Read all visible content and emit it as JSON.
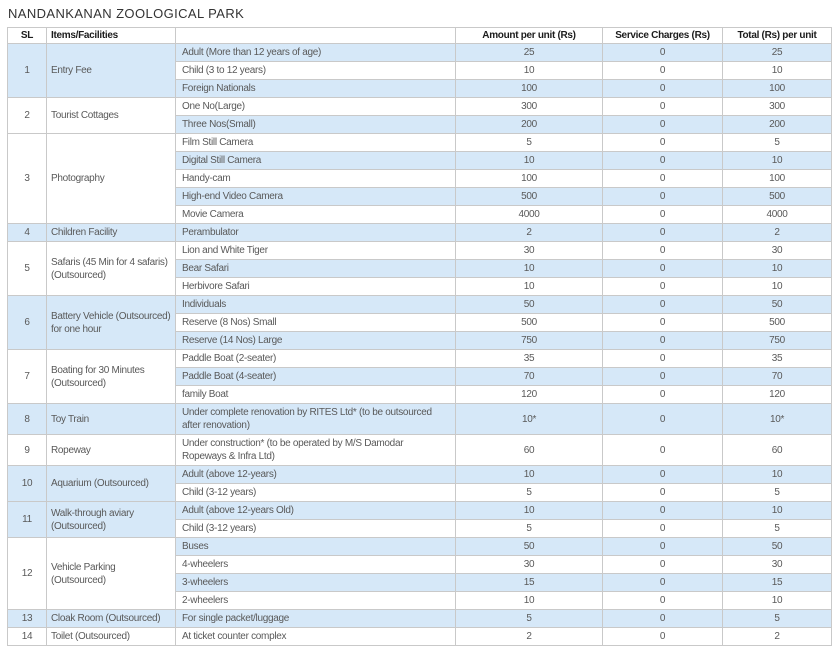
{
  "title": "NANDANKANAN ZOOLOGICAL PARK",
  "colors": {
    "row_highlight": "#d6e8f8",
    "border": "#c9c9c9",
    "outer_border": "#919191",
    "body_text": "#595959",
    "header_text": "#1c1c1c"
  },
  "table": {
    "headers": [
      "SL",
      "Items/Facilities",
      "",
      "Amount per unit (Rs)",
      "Service Charges (Rs)",
      "Total (Rs) per unit"
    ],
    "groups": [
      {
        "sl": "1",
        "facility": "Entry Fee",
        "shaded": true,
        "rows": [
          {
            "item": "Adult (More than 12 years of age)",
            "amount": "25",
            "service": "0",
            "total": "25"
          },
          {
            "item": "Child (3 to 12 years)",
            "amount": "10",
            "service": "0",
            "total": "10"
          },
          {
            "item": "Foreign Nationals",
            "amount": "100",
            "service": "0",
            "total": "100"
          }
        ]
      },
      {
        "sl": "2",
        "facility": "Tourist Cottages",
        "shaded": false,
        "rows": [
          {
            "item": "One No(Large)",
            "amount": "300",
            "service": "0",
            "total": "300"
          },
          {
            "item": "Three Nos(Small)",
            "amount": "200",
            "service": "0",
            "total": "200"
          }
        ]
      },
      {
        "sl": "3",
        "facility": "Photography",
        "shaded": false,
        "rows": [
          {
            "item": "Film Still Camera",
            "amount": "5",
            "service": "0",
            "total": "5"
          },
          {
            "item": "Digital Still Camera",
            "amount": "10",
            "service": "0",
            "total": "10"
          },
          {
            "item": "Handy-cam",
            "amount": "100",
            "service": "0",
            "total": "100"
          },
          {
            "item": "High-end Video Camera",
            "amount": "500",
            "service": "0",
            "total": "500"
          },
          {
            "item": "Movie Camera",
            "amount": "4000",
            "service": "0",
            "total": "4000"
          }
        ]
      },
      {
        "sl": "4",
        "facility": "Children Facility",
        "shaded": true,
        "rows": [
          {
            "item": "Perambulator",
            "amount": "2",
            "service": "0",
            "total": "2"
          }
        ]
      },
      {
        "sl": "5",
        "facility": "Safaris (45 Min for 4 safaris) (Outsourced)",
        "shaded": false,
        "rows": [
          {
            "item": "Lion and White Tiger",
            "amount": "30",
            "service": "0",
            "total": "30"
          },
          {
            "item": "Bear Safari",
            "amount": "10",
            "service": "0",
            "total": "10"
          },
          {
            "item": "Herbivore Safari",
            "amount": "10",
            "service": "0",
            "total": "10"
          }
        ]
      },
      {
        "sl": "6",
        "facility": "Battery Vehicle (Outsourced) for one hour",
        "shaded": true,
        "rows": [
          {
            "item": "Individuals",
            "amount": "50",
            "service": "0",
            "total": "50"
          },
          {
            "item": "Reserve (8 Nos) Small",
            "amount": "500",
            "service": "0",
            "total": "500"
          },
          {
            "item": "Reserve (14 Nos) Large",
            "amount": "750",
            "service": "0",
            "total": "750"
          }
        ]
      },
      {
        "sl": "7",
        "facility": "Boating for 30 Minutes (Outsourced)",
        "shaded": false,
        "rows": [
          {
            "item": "Paddle Boat (2-seater)",
            "amount": "35",
            "service": "0",
            "total": "35"
          },
          {
            "item": "Paddle Boat (4-seater)",
            "amount": "70",
            "service": "0",
            "total": "70"
          },
          {
            "item": "family Boat",
            "amount": "120",
            "service": "0",
            "total": "120"
          }
        ]
      },
      {
        "sl": "8",
        "facility": "Toy Train",
        "shaded": true,
        "rows": [
          {
            "item": "Under complete renovation by RITES Ltd* (to be outsourced after renovation)",
            "amount": "10*",
            "service": "0",
            "total": "10*"
          }
        ]
      },
      {
        "sl": "9",
        "facility": "Ropeway",
        "shaded": false,
        "rows": [
          {
            "item": "Under construction* (to be operated by M/S Damodar Ropeways & Infra Ltd)",
            "amount": "60",
            "service": "0",
            "total": "60"
          }
        ]
      },
      {
        "sl": "10",
        "facility": "Aquarium (Outsourced)",
        "shaded": true,
        "rows": [
          {
            "item": "Adult (above 12-years)",
            "amount": "10",
            "service": "0",
            "total": "10"
          },
          {
            "item": "Child (3-12 years)",
            "amount": "5",
            "service": "0",
            "total": "5"
          }
        ]
      },
      {
        "sl": "11",
        "facility": "Walk-through aviary (Outsourced)",
        "shaded": true,
        "rows": [
          {
            "item": "Adult (above 12-years Old)",
            "amount": "10",
            "service": "0",
            "total": "10"
          },
          {
            "item": "Child (3-12 years)",
            "amount": "5",
            "service": "0",
            "total": "5"
          }
        ]
      },
      {
        "sl": "12",
        "facility": "Vehicle Parking (Outsourced)",
        "shaded": false,
        "rows": [
          {
            "item": "Buses",
            "amount": "50",
            "service": "0",
            "total": "50"
          },
          {
            "item": "4-wheelers",
            "amount": "30",
            "service": "0",
            "total": "30"
          },
          {
            "item": "3-wheelers",
            "amount": "15",
            "service": "0",
            "total": "15"
          },
          {
            "item": "2-wheelers",
            "amount": "10",
            "service": "0",
            "total": "10"
          }
        ]
      },
      {
        "sl": "13",
        "facility": "Cloak Room (Outsourced)",
        "shaded": true,
        "rows": [
          {
            "item": "For single packet/luggage",
            "amount": "5",
            "service": "0",
            "total": "5"
          }
        ]
      },
      {
        "sl": "14",
        "facility": "Toilet (Outsourced)",
        "shaded": false,
        "rows": [
          {
            "item": "At ticket counter complex",
            "amount": "2",
            "service": "0",
            "total": "2"
          }
        ]
      }
    ]
  }
}
